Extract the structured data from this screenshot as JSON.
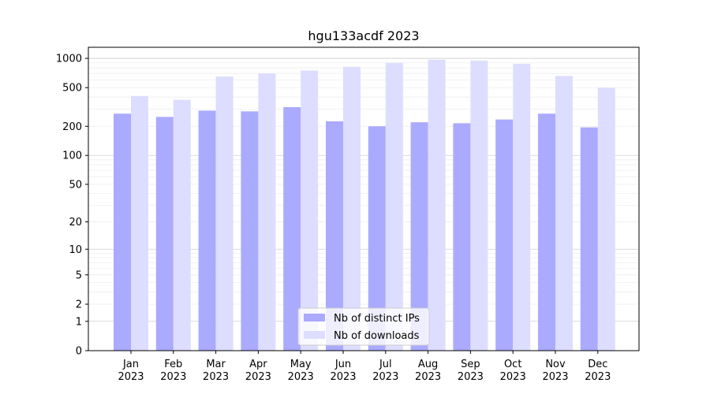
{
  "chart_data": {
    "type": "bar",
    "title": "hgu133acdf 2023",
    "xlabel": "",
    "ylabel": "",
    "y_scale": "log1p",
    "ylim": [
      0,
      1300
    ],
    "y_ticks": [
      0,
      1,
      2,
      5,
      10,
      20,
      50,
      100,
      200,
      500,
      1000
    ],
    "categories": [
      "Jan\n2023",
      "Feb\n2023",
      "Mar\n2023",
      "Apr\n2023",
      "May\n2023",
      "Jun\n2023",
      "Jul\n2023",
      "Aug\n2023",
      "Sep\n2023",
      "Oct\n2023",
      "Nov\n2023",
      "Dec\n2023"
    ],
    "series": [
      {
        "name": "Nb of distinct IPs",
        "color": "#aaaaff",
        "values": [
          270,
          250,
          290,
          285,
          315,
          225,
          200,
          220,
          215,
          235,
          270,
          195
        ]
      },
      {
        "name": "Nb of downloads",
        "color": "#ddddff",
        "values": [
          410,
          375,
          650,
          700,
          750,
          820,
          900,
          970,
          950,
          880,
          660,
          500
        ]
      }
    ],
    "grid": true,
    "legend": {
      "position": "lower-center"
    }
  }
}
